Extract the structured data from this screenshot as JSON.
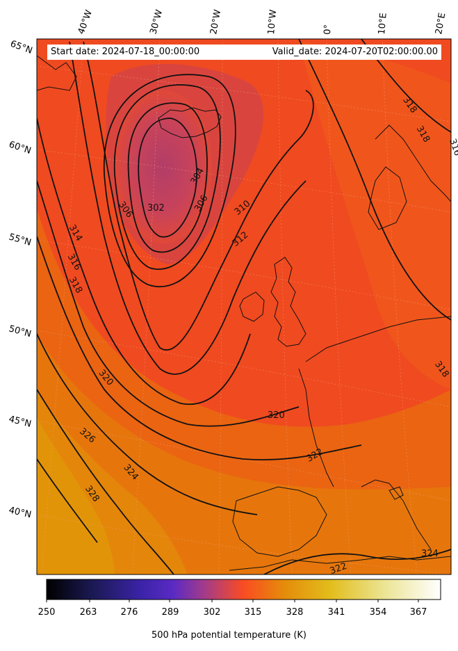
{
  "header": {
    "start_date": "Start date: 2024-07-18_00:00:00",
    "valid_date": "Valid_date: 2024-07-20T02:00:00.00"
  },
  "map": {
    "longitude_labels": [
      "40°W",
      "30°W",
      "20°W",
      "10°W",
      "0°",
      "10°E",
      "20°E"
    ],
    "latitude_labels": [
      "65°N",
      "60°N",
      "55°N",
      "50°N",
      "45°N",
      "40°N"
    ],
    "contour_labels": [
      "302",
      "304",
      "306",
      "306",
      "310",
      "312",
      "314",
      "316",
      "318",
      "320",
      "320",
      "322",
      "322",
      "324",
      "324",
      "326",
      "328",
      "318",
      "318",
      "318",
      "316"
    ]
  },
  "colorbar": {
    "ticks": [
      "250",
      "263",
      "276",
      "289",
      "302",
      "315",
      "328",
      "341",
      "354",
      "367"
    ],
    "title": "500 hPa potential temperature (K)",
    "colors": [
      "#000000",
      "#2a1f78",
      "#4a26c7",
      "#8d3aa6",
      "#c43e6b",
      "#fa4c22",
      "#e88a0a",
      "#e2bf1f",
      "#ebe488",
      "#ffffff"
    ]
  }
}
